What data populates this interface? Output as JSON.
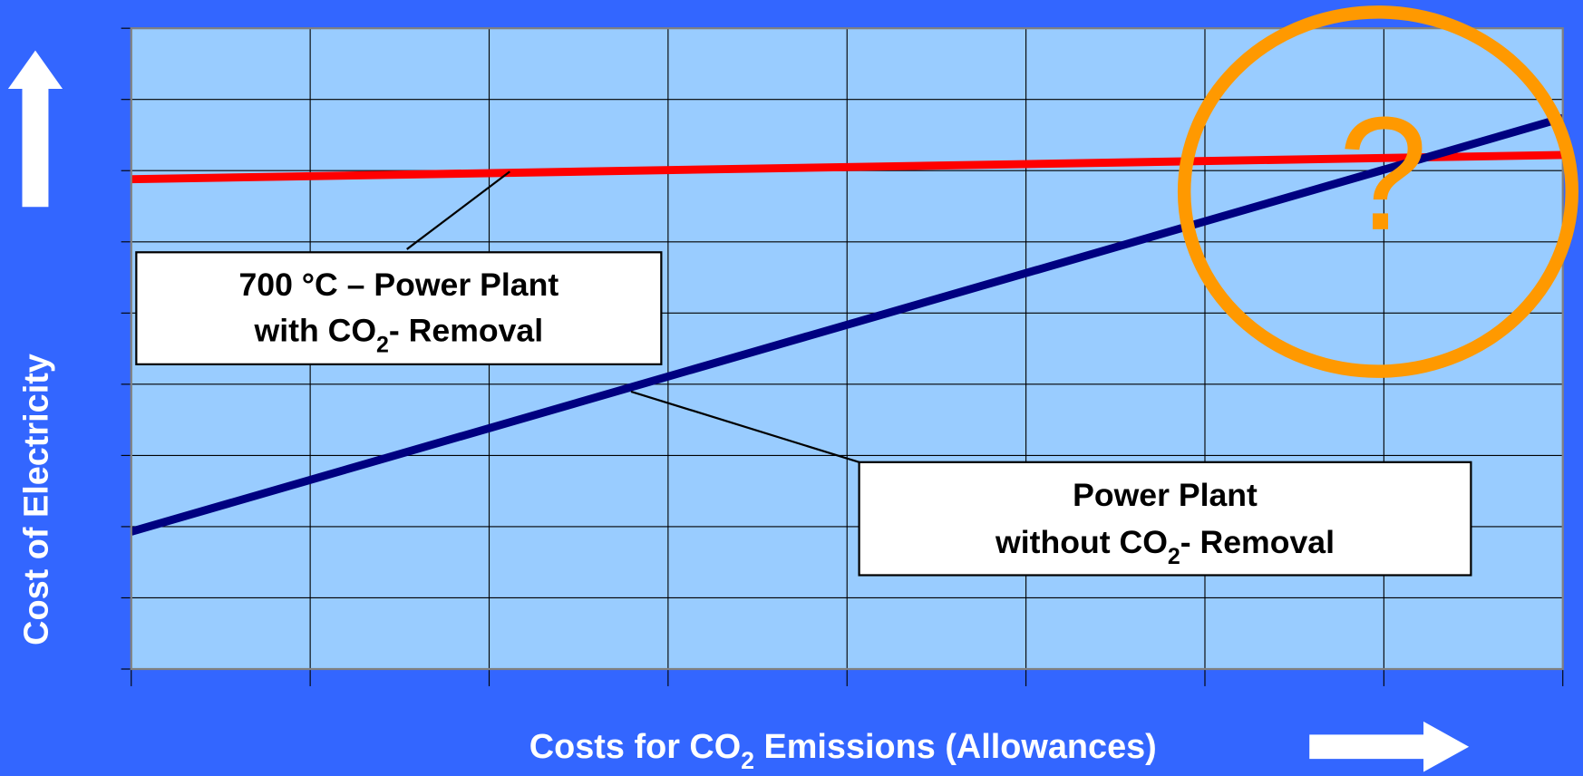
{
  "chart_data": {
    "type": "line",
    "y_label": "Cost of Electricity",
    "x_label": [
      "Costs for CO",
      "2",
      " Emissions (Allowances)"
    ],
    "x": [
      0,
      8
    ],
    "series": [
      {
        "color": "#ff0000",
        "values": [
          6.88,
          7.22
        ]
      },
      {
        "color": "#000080",
        "values": [
          1.93,
          7.74
        ]
      }
    ],
    "xlim": [
      0,
      8
    ],
    "ylim": [
      0,
      9
    ],
    "xticks": [
      0,
      1,
      2,
      3,
      4,
      5,
      6,
      7,
      8
    ],
    "yticks": [
      0,
      1,
      2,
      3,
      4,
      5,
      6,
      7,
      8,
      9
    ],
    "grid": true,
    "annotations": [
      {
        "lines": [
          [
            "700 °C – Power Plant"
          ],
          [
            "with CO",
            "2",
            "- Removal"
          ]
        ]
      },
      {
        "lines": [
          [
            "Power Plant"
          ],
          [
            "without CO",
            "2",
            "- Removal"
          ]
        ]
      },
      {
        "lines": [
          [
            "?"
          ]
        ]
      }
    ]
  }
}
